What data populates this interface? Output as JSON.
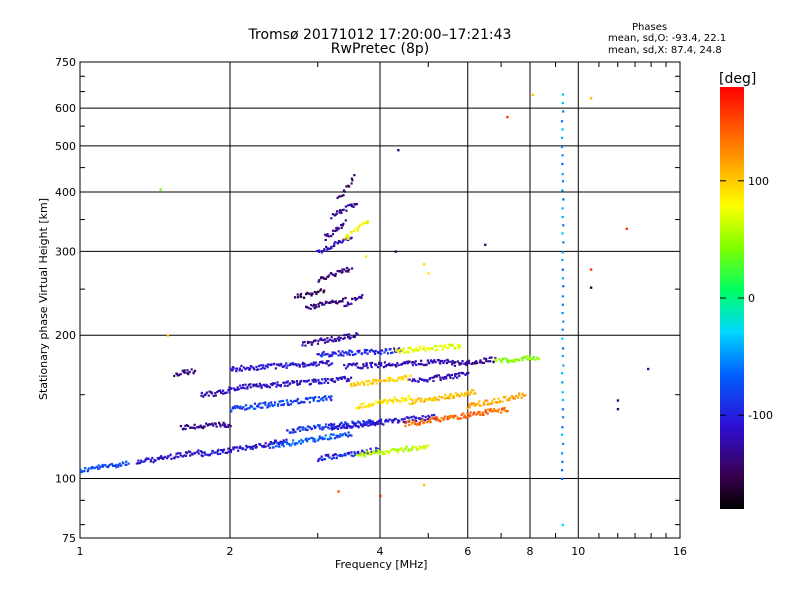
{
  "chart_data": {
    "type": "scatter",
    "title": "Tromsø 20171012 17:20:00–17:21:43",
    "subtitle": "RwPretec (8p)",
    "xlabel": "Frequency [MHz]",
    "ylabel": "Stationary phase Virtual Height [km]",
    "x_scale": "log",
    "y_scale": "log",
    "xlim": [
      1,
      16
    ],
    "ylim": [
      75,
      750
    ],
    "x_ticks": [
      "1",
      "2",
      "4",
      "6",
      "8",
      "10",
      "16"
    ],
    "y_ticks": [
      "75",
      "100",
      "200",
      "300",
      "400",
      "500",
      "600",
      "750"
    ],
    "grid": true,
    "colorbar": {
      "label": "[deg]",
      "ticks": [
        "100",
        "0",
        "-100"
      ],
      "range": [
        -180,
        180
      ]
    },
    "annotation": {
      "heading": "Phases",
      "line_o": "mean, sd,O: -93.4, 22.1",
      "line_x": "mean, sd,X:  87.4, 24.8"
    },
    "traces": [
      {
        "x": [
          1.0,
          1.25
        ],
        "y": [
          104,
          108
        ],
        "phase": -85
      },
      {
        "x": [
          1.3,
          1.75
        ],
        "y": [
          108,
          114
        ],
        "phase": -115
      },
      {
        "x": [
          1.75,
          2.6
        ],
        "y": [
          112,
          120
        ],
        "phase": -110
      },
      {
        "x": [
          2.4,
          3.5
        ],
        "y": [
          117,
          124
        ],
        "phase": -80
      },
      {
        "x": [
          3.0,
          4.0
        ],
        "y": [
          110,
          115
        ],
        "phase": -100
      },
      {
        "x": [
          3.6,
          5.0
        ],
        "y": [
          112,
          117
        ],
        "phase": 60
      },
      {
        "x": [
          2.6,
          4.0
        ],
        "y": [
          126,
          132
        ],
        "phase": -95
      },
      {
        "x": [
          3.2,
          5.2
        ],
        "y": [
          128,
          135
        ],
        "phase": -110
      },
      {
        "x": [
          4.5,
          7.2
        ],
        "y": [
          130,
          140
        ],
        "phase": 145
      },
      {
        "x": [
          1.6,
          2.0
        ],
        "y": [
          128,
          130
        ],
        "phase": -130
      },
      {
        "x": [
          2.0,
          3.2
        ],
        "y": [
          140,
          148
        ],
        "phase": -90
      },
      {
        "x": [
          3.6,
          4.6
        ],
        "y": [
          142,
          148
        ],
        "phase": 90
      },
      {
        "x": [
          4.6,
          6.2
        ],
        "y": [
          145,
          152
        ],
        "phase": 110
      },
      {
        "x": [
          6.0,
          7.8
        ],
        "y": [
          142,
          150
        ],
        "phase": 120
      },
      {
        "x": [
          1.75,
          2.0
        ],
        "y": [
          150,
          152
        ],
        "phase": -120
      },
      {
        "x": [
          2.0,
          3.5
        ],
        "y": [
          155,
          162
        ],
        "phase": -115
      },
      {
        "x": [
          3.5,
          4.6
        ],
        "y": [
          158,
          163
        ],
        "phase": 100
      },
      {
        "x": [
          4.6,
          6.0
        ],
        "y": [
          160,
          166
        ],
        "phase": -120
      },
      {
        "x": [
          1.55,
          1.7
        ],
        "y": [
          166,
          168
        ],
        "phase": -140
      },
      {
        "x": [
          2.0,
          3.2
        ],
        "y": [
          170,
          175
        ],
        "phase": -110
      },
      {
        "x": [
          3.4,
          5.6
        ],
        "y": [
          172,
          176
        ],
        "phase": -120
      },
      {
        "x": [
          5.6,
          6.8
        ],
        "y": [
          174,
          178
        ],
        "phase": -130
      },
      {
        "x": [
          3.0,
          4.4
        ],
        "y": [
          182,
          186
        ],
        "phase": -100
      },
      {
        "x": [
          4.3,
          5.8
        ],
        "y": [
          185,
          190
        ],
        "phase": 70
      },
      {
        "x": [
          6.8,
          8.3
        ],
        "y": [
          176,
          180
        ],
        "phase": 40
      },
      {
        "x": [
          2.8,
          3.6
        ],
        "y": [
          192,
          200
        ],
        "phase": -130
      },
      {
        "x": [
          2.85,
          3.4
        ],
        "y": [
          228,
          238
        ],
        "phase": -140
      },
      {
        "x": [
          2.7,
          3.1
        ],
        "y": [
          240,
          248
        ],
        "phase": -150
      },
      {
        "x": [
          3.4,
          3.7
        ],
        "y": [
          232,
          242
        ],
        "phase": -130
      },
      {
        "x": [
          3.0,
          3.5
        ],
        "y": [
          262,
          276
        ],
        "phase": -140
      },
      {
        "x": [
          3.0,
          3.5
        ],
        "y": [
          300,
          320
        ],
        "phase": -120
      },
      {
        "x": [
          3.1,
          3.4
        ],
        "y": [
          320,
          345
        ],
        "phase": -130
      },
      {
        "x": [
          3.4,
          3.8
        ],
        "y": [
          320,
          350
        ],
        "phase": 80
      },
      {
        "x": [
          3.2,
          3.6
        ],
        "y": [
          355,
          380
        ],
        "phase": -130
      },
      {
        "x": [
          3.3,
          3.55
        ],
        "y": [
          385,
          430
        ],
        "phase": -140
      },
      {
        "x": [
          9.3,
          9.3
        ],
        "y": [
          100,
          640
        ],
        "phase": -60
      }
    ],
    "points": [
      {
        "x": 1.45,
        "y": 405,
        "phase": 40
      },
      {
        "x": 1.5,
        "y": 200,
        "phase": 110
      },
      {
        "x": 4.35,
        "y": 490,
        "phase": -130
      },
      {
        "x": 6.5,
        "y": 310,
        "phase": -140
      },
      {
        "x": 7.2,
        "y": 575,
        "phase": 160
      },
      {
        "x": 8.1,
        "y": 640,
        "phase": 110
      },
      {
        "x": 10.6,
        "y": 630,
        "phase": 110
      },
      {
        "x": 12.5,
        "y": 335,
        "phase": 160
      },
      {
        "x": 10.6,
        "y": 275,
        "phase": 160
      },
      {
        "x": 10.6,
        "y": 252,
        "phase": -160
      },
      {
        "x": 12.0,
        "y": 140,
        "phase": -140
      },
      {
        "x": 12.0,
        "y": 146,
        "phase": -130
      },
      {
        "x": 13.8,
        "y": 170,
        "phase": -120
      },
      {
        "x": 3.3,
        "y": 94,
        "phase": 150
      },
      {
        "x": 4.0,
        "y": 92,
        "phase": 170
      },
      {
        "x": 4.9,
        "y": 97,
        "phase": 110
      },
      {
        "x": 3.75,
        "y": 293,
        "phase": 90
      },
      {
        "x": 4.3,
        "y": 300,
        "phase": -150
      },
      {
        "x": 4.9,
        "y": 282,
        "phase": 100
      },
      {
        "x": 5.0,
        "y": 270,
        "phase": 90
      },
      {
        "x": 9.3,
        "y": 80,
        "phase": -40
      }
    ]
  }
}
